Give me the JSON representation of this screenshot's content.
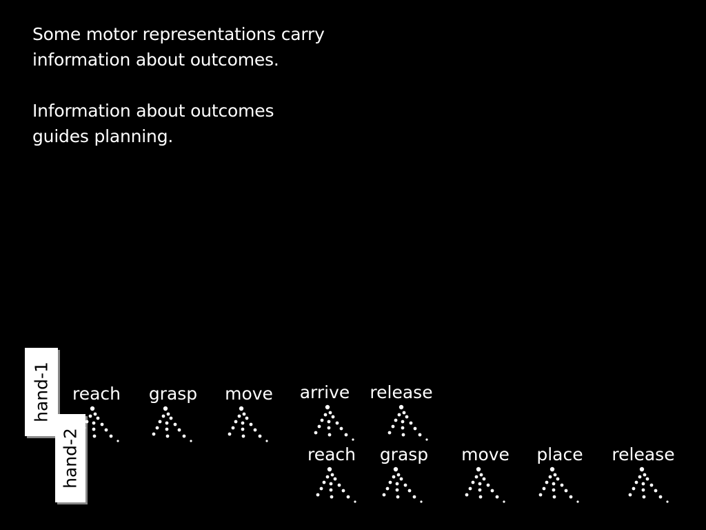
{
  "statements": [
    "Some motor representations carry\ninformation about outcomes.",
    "Information about outcomes\nguides planning."
  ],
  "hand1": {
    "label": "hand-1",
    "actions": [
      "reach",
      "grasp",
      "move",
      "arrive",
      "release"
    ]
  },
  "hand2": {
    "label": "hand-2",
    "actions": [
      "reach",
      "grasp",
      "move",
      "place",
      "release"
    ]
  }
}
